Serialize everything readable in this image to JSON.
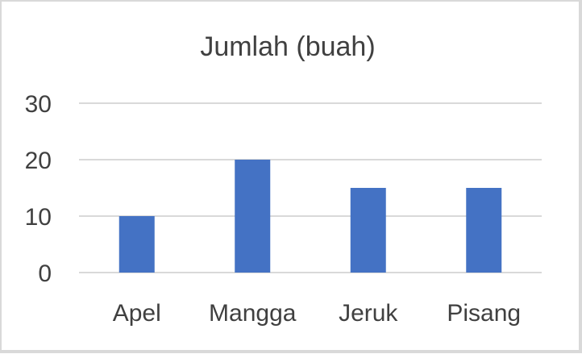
{
  "chart_data": {
    "type": "bar",
    "title": "Jumlah (buah)",
    "categories": [
      "Apel",
      "Mangga",
      "Jeruk",
      "Pisang"
    ],
    "values": [
      10,
      20,
      15,
      15
    ],
    "xlabel": "",
    "ylabel": "",
    "ylim": [
      0,
      30
    ],
    "yticks": [
      "0",
      "10",
      "20",
      "30"
    ],
    "grid": true,
    "legend": "none",
    "bar_color": "#4472c4",
    "grid_color": "#d9d9d9",
    "text_color": "#404040"
  }
}
